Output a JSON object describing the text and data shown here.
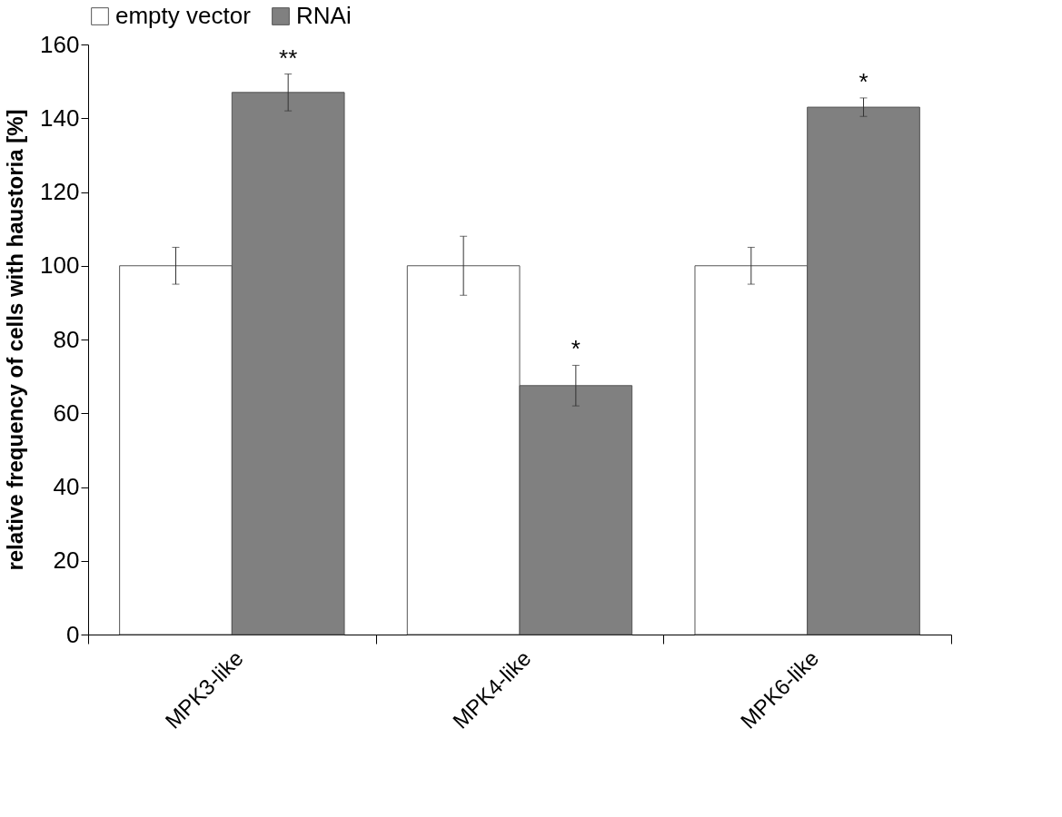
{
  "chart_data": {
    "type": "bar",
    "ylabel": "relative frequency of cells with haustoria [%]",
    "categories": [
      "MPK3-like",
      "MPK4-like",
      "MPK6-like"
    ],
    "series": [
      {
        "name": "empty vector",
        "color": "#ffffff",
        "values": [
          100,
          100,
          100
        ],
        "errors": [
          5,
          8,
          5
        ]
      },
      {
        "name": "RNAi",
        "color": "#808080",
        "values": [
          147,
          67.5,
          143
        ],
        "errors": [
          5,
          5.5,
          2.5
        ],
        "value_labels": [
          "**",
          "*",
          "*"
        ]
      }
    ],
    "ylim": [
      0,
      160
    ],
    "yticks": [
      0,
      20,
      40,
      60,
      80,
      100,
      120,
      140,
      160
    ],
    "grid": false,
    "legend": "top"
  }
}
